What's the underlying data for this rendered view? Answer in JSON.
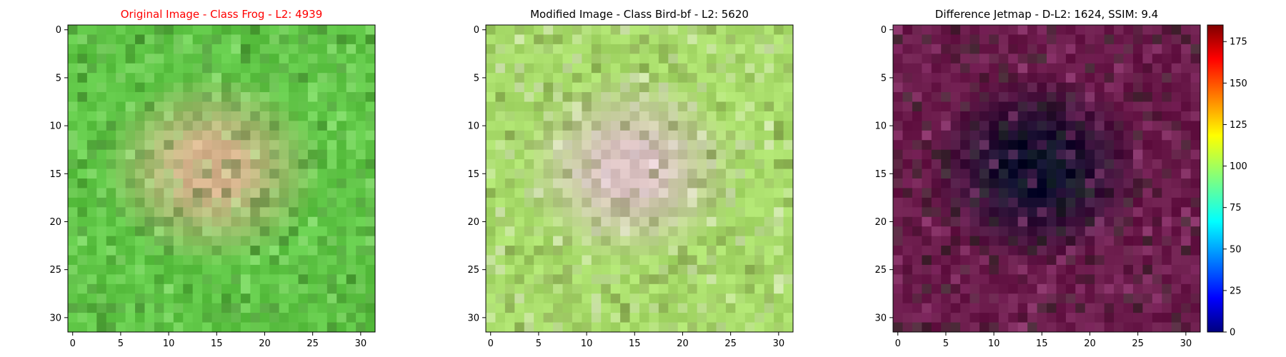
{
  "chart_data": [
    {
      "type": "heatmap",
      "title": "Original Image - Class Frog - L2: 4939",
      "title_color": "#ff0000",
      "grid_size": 32,
      "xlim": [
        -0.5,
        31.5
      ],
      "ylim": [
        31.5,
        -0.5
      ],
      "x_ticks": [
        0,
        5,
        10,
        15,
        20,
        25,
        30
      ],
      "y_ticks": [
        0,
        5,
        10,
        15,
        20,
        25,
        30
      ],
      "palette": {
        "background": "#5fc646",
        "foreground": "#d8b48e",
        "shadow": "#3a6a28",
        "highlight": "#a8e890"
      },
      "legend": "none"
    },
    {
      "type": "heatmap",
      "title": "Modified Image - Class Bird-bf - L2: 5620",
      "title_color": "#000000",
      "grid_size": 32,
      "xlim": [
        -0.5,
        31.5
      ],
      "ylim": [
        31.5,
        -0.5
      ],
      "x_ticks": [
        0,
        5,
        10,
        15,
        20,
        25,
        30
      ],
      "y_ticks": [
        0,
        5,
        10,
        15,
        20,
        25,
        30
      ],
      "palette": {
        "background": "#a8dc6a",
        "foreground": "#d9c0c0",
        "shadow": "#6f7a3f",
        "highlight": "#f2e4ee"
      },
      "legend": "none"
    },
    {
      "type": "heatmap",
      "title": "Difference Jetmap - D-L2: 1624, SSIM: 9.4",
      "title_color": "#000000",
      "grid_size": 32,
      "xlim": [
        -0.5,
        31.5
      ],
      "ylim": [
        31.5,
        -0.5
      ],
      "x_ticks": [
        0,
        5,
        10,
        15,
        20,
        25,
        30
      ],
      "y_ticks": [
        0,
        5,
        10,
        15,
        20,
        25,
        30
      ],
      "palette": {
        "background": "#6a1a4a",
        "foreground": "#0a0a2a",
        "shadow": "#1a3a1a",
        "highlight": "#b05090"
      },
      "colorbar": {
        "colormap": "jet",
        "range": [
          0,
          185
        ],
        "ticks": [
          0,
          25,
          50,
          75,
          100,
          125,
          150,
          175
        ]
      },
      "legend": "none"
    }
  ]
}
